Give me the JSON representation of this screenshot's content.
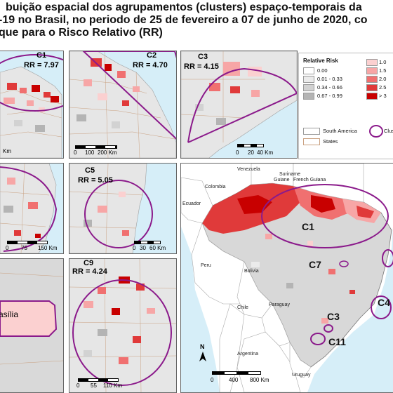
{
  "title": {
    "line1": "buição espacial dos agrupamentos (clusters) espaço-temporais da",
    "line2": "-19 no Brasil, no periodo de 25 de fevereiro a 07 de junho de 2020, co",
    "line3": "que para o Risco Relativo (RR)"
  },
  "panels": {
    "c1": {
      "label": "C1",
      "rr": "RR = 7.97",
      "scale": "Km"
    },
    "c2": {
      "label": "C2",
      "rr": "RR = 4.70",
      "scale": [
        "0",
        "100",
        "200 Km"
      ]
    },
    "c3": {
      "label": "C3",
      "rr": "RR = 4.15",
      "scale": [
        "0",
        "20",
        "40 Km"
      ]
    },
    "c4": {
      "scale": [
        "0",
        "75",
        "150 Km"
      ]
    },
    "c5": {
      "label": "C5",
      "rr": "RR = 5.05",
      "scale": [
        "0",
        "30",
        "60 Km"
      ]
    },
    "c8": {
      "place": "asília"
    },
    "c9": {
      "label": "C9",
      "rr": "RR = 4.24",
      "scale": [
        "0",
        "55",
        "110 Km"
      ]
    }
  },
  "legend": {
    "title": "Relative Risk",
    "left_classes": [
      "0.00",
      "0.01 - 0.33",
      "0.34 - 0.66",
      "0.67 - 0.99"
    ],
    "left_colors": [
      "#ffffff",
      "#ebebeb",
      "#d2d2d2",
      "#b4b4b4"
    ],
    "right_classes": [
      "1.0",
      "1.5",
      "2.0",
      "2.5",
      "> 3"
    ],
    "right_colors": [
      "#fbd0d0",
      "#f7a6a6",
      "#f07070",
      "#e03a3a",
      "#c80000"
    ],
    "south_america": "South America",
    "states": "States",
    "clusters": "Clus"
  },
  "main_map": {
    "countries": [
      "Venezuela",
      "Suriname",
      "Guiane",
      "French Guiana",
      "Colombia",
      "Ecuador",
      "Peru",
      "Bolivia",
      "Chile",
      "Paraguay",
      "Argentina",
      "Uruguay"
    ],
    "clusters": [
      "C1",
      "C7",
      "C4",
      "C3",
      "C11"
    ],
    "scale": [
      "0",
      "400",
      "800 Km"
    ],
    "north": "N"
  }
}
